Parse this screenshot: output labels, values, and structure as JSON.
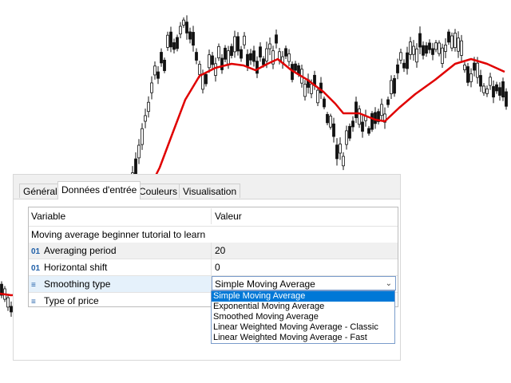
{
  "colors": {
    "candle": "#111111",
    "moving_average": "#e00000",
    "selection": "#0078d7",
    "row_highlight": "#e5f1fb"
  },
  "tabs": [
    {
      "label": "Général"
    },
    {
      "label": "Données d'entrée"
    },
    {
      "label": "Couleurs"
    },
    {
      "label": "Visualisation"
    }
  ],
  "grid": {
    "header": {
      "variable": "Variable",
      "value": "Valeur"
    },
    "title_row": "Moving average beginner tutorial to learn",
    "rows": [
      {
        "icon": "01",
        "label": "Averaging period",
        "value": "20"
      },
      {
        "icon": "01",
        "label": "Horizontal shift",
        "value": "0"
      },
      {
        "icon": "≡",
        "label": "Smoothing type",
        "value": "Simple Moving Average"
      },
      {
        "icon": "≡",
        "label": "Type of price",
        "value": ""
      }
    ]
  },
  "dropdown": {
    "options": [
      "Simple Moving Average",
      "Exponential Moving Average",
      "Smoothed Moving Average",
      "Linear Weighted Moving Average - Classic",
      "Linear Weighted Moving Average - Fast"
    ]
  }
}
